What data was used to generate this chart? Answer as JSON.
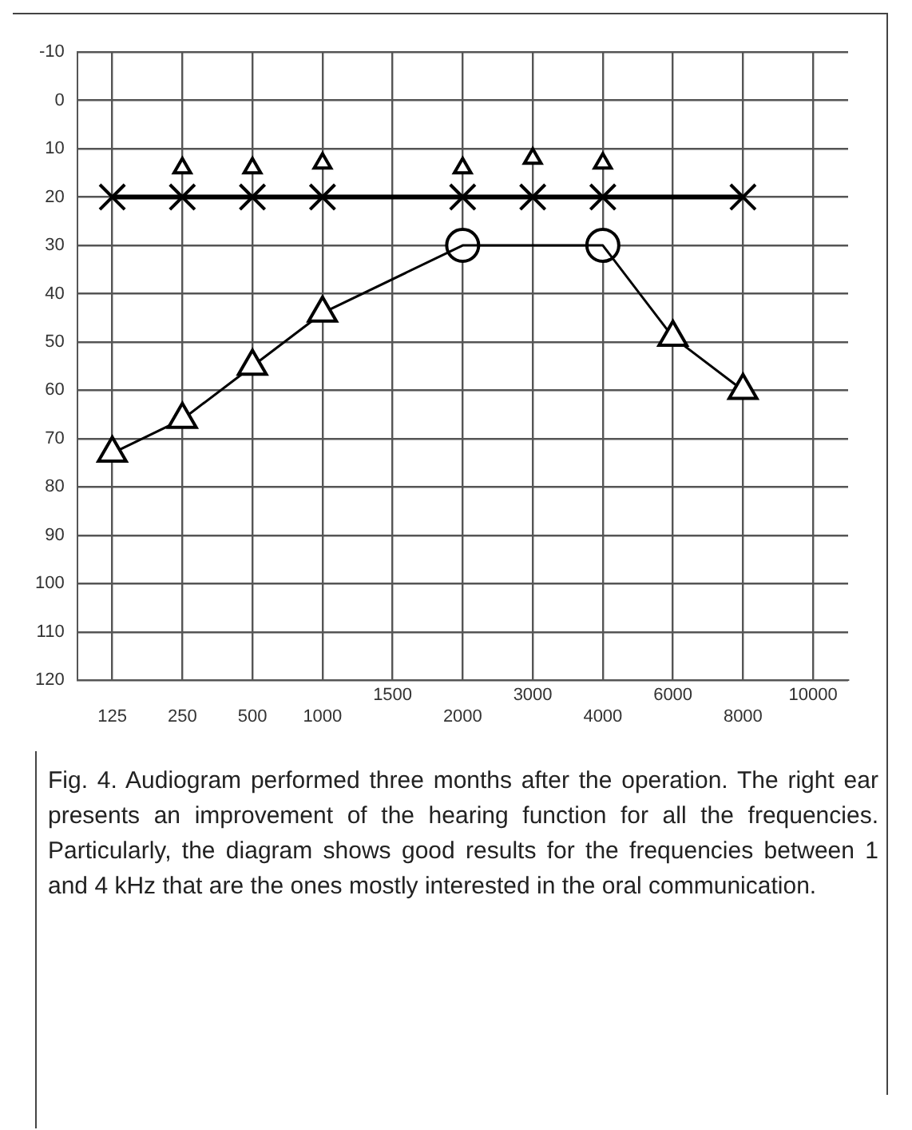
{
  "chart_data": {
    "type": "line",
    "categories": [
      "125",
      "250",
      "500",
      "1000",
      "1500",
      "2000",
      "3000",
      "4000",
      "6000",
      "8000",
      "10000"
    ],
    "ylim": [
      120,
      -10
    ],
    "yticks": [
      -10,
      0,
      10,
      20,
      30,
      40,
      50,
      60,
      70,
      80,
      90,
      100,
      110,
      120
    ],
    "grid": true,
    "legend": false,
    "series": [
      {
        "marker": "triangle",
        "color": "#000000",
        "values": [
          73,
          66,
          55,
          44,
          null,
          30,
          null,
          30,
          49,
          60,
          null
        ]
      },
      {
        "type": "scatter",
        "marker": "circle",
        "color": "#000000",
        "values": [
          null,
          null,
          null,
          null,
          null,
          30,
          null,
          30,
          null,
          null,
          null
        ]
      },
      {
        "marker": "cross",
        "color": "#000000",
        "values": [
          20,
          20,
          20,
          20,
          null,
          20,
          20,
          20,
          null,
          20,
          null
        ]
      },
      {
        "type": "scatter",
        "marker": "triangle",
        "color": "#000000",
        "values": [
          null,
          14,
          14,
          13,
          null,
          14,
          12,
          13,
          null,
          null,
          null
        ]
      }
    ],
    "annotations": [
      "Fig. 4. Audiogram performed three months after the operation. The right ear presents an improvement of the hearing function for all the frequencies. Particularly, the diagram shows good results for the frequencies between 1 and 4 kHz that are the ones mostly interested in the oral communication."
    ]
  }
}
